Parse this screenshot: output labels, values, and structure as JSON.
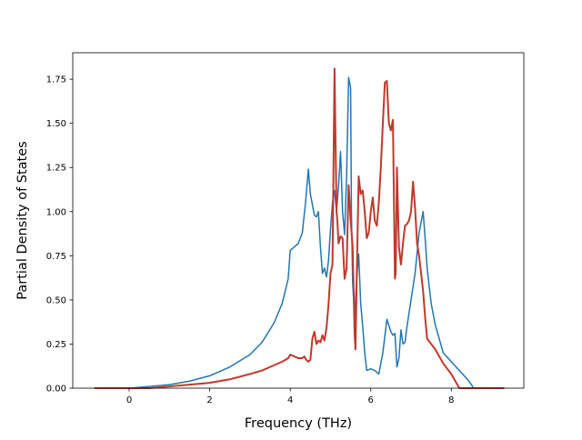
{
  "chart_data": {
    "type": "line",
    "xlabel": "Frequency (THz)",
    "ylabel": "Partial Density of States",
    "xlim": [
      -1.4,
      9.8
    ],
    "ylim": [
      0.0,
      1.9
    ],
    "xticks": [
      0,
      2,
      4,
      6,
      8
    ],
    "xtick_labels": [
      "0",
      "2",
      "4",
      "6",
      "8"
    ],
    "yticks": [
      0.0,
      0.25,
      0.5,
      0.75,
      1.0,
      1.25,
      1.5,
      1.75
    ],
    "ytick_labels": [
      "0.00",
      "0.25",
      "0.50",
      "0.75",
      "1.00",
      "1.25",
      "1.50",
      "1.75"
    ],
    "grid": false,
    "legend": "none",
    "series": [
      {
        "color": "#1f77b4",
        "x": [
          -0.85,
          0.0,
          0.5,
          1.0,
          1.5,
          2.0,
          2.5,
          3.0,
          3.3,
          3.6,
          3.8,
          3.95,
          4.0,
          4.1,
          4.2,
          4.3,
          4.38,
          4.45,
          4.5,
          4.6,
          4.65,
          4.7,
          4.75,
          4.8,
          4.85,
          4.9,
          4.95,
          5.0,
          5.05,
          5.1,
          5.15,
          5.2,
          5.25,
          5.3,
          5.35,
          5.4,
          5.45,
          5.5,
          5.52,
          5.55,
          5.6,
          5.65,
          5.7,
          5.75,
          5.8,
          5.85,
          5.9,
          6.0,
          6.1,
          6.2,
          6.3,
          6.4,
          6.5,
          6.55,
          6.6,
          6.65,
          6.7,
          6.75,
          6.8,
          6.85,
          6.9,
          7.0,
          7.1,
          7.2,
          7.3,
          7.35,
          7.4,
          7.5,
          7.6,
          7.7,
          7.8,
          8.0,
          8.2,
          8.4,
          8.5,
          8.55,
          9.3
        ],
        "y": [
          0.0,
          0.0,
          0.01,
          0.02,
          0.04,
          0.07,
          0.12,
          0.19,
          0.26,
          0.37,
          0.48,
          0.62,
          0.78,
          0.8,
          0.82,
          0.88,
          1.05,
          1.24,
          1.1,
          0.98,
          0.97,
          1.0,
          0.8,
          0.65,
          0.68,
          0.63,
          0.72,
          0.9,
          1.05,
          1.12,
          1.0,
          1.15,
          1.34,
          1.0,
          0.87,
          1.2,
          1.76,
          1.7,
          1.0,
          0.6,
          0.4,
          0.62,
          0.76,
          0.48,
          0.35,
          0.2,
          0.1,
          0.11,
          0.1,
          0.08,
          0.2,
          0.39,
          0.32,
          0.3,
          0.31,
          0.12,
          0.17,
          0.33,
          0.25,
          0.26,
          0.35,
          0.5,
          0.65,
          0.88,
          1.0,
          0.85,
          0.68,
          0.48,
          0.36,
          0.28,
          0.2,
          0.15,
          0.1,
          0.05,
          0.02,
          0.0,
          0.0
        ]
      },
      {
        "color": "#c0392b",
        "x": [
          -0.85,
          0.0,
          0.5,
          1.0,
          1.5,
          2.0,
          2.5,
          3.0,
          3.3,
          3.6,
          3.8,
          3.95,
          4.0,
          4.1,
          4.2,
          4.3,
          4.35,
          4.4,
          4.45,
          4.5,
          4.55,
          4.6,
          4.65,
          4.7,
          4.75,
          4.8,
          4.85,
          4.9,
          4.95,
          5.0,
          5.05,
          5.1,
          5.15,
          5.17,
          5.2,
          5.25,
          5.3,
          5.35,
          5.4,
          5.45,
          5.5,
          5.55,
          5.6,
          5.62,
          5.65,
          5.7,
          5.75,
          5.8,
          5.85,
          5.9,
          5.95,
          6.0,
          6.05,
          6.1,
          6.15,
          6.2,
          6.25,
          6.3,
          6.35,
          6.4,
          6.45,
          6.5,
          6.55,
          6.6,
          6.62,
          6.65,
          6.7,
          6.75,
          6.8,
          6.85,
          6.9,
          6.95,
          7.0,
          7.05,
          7.1,
          7.15,
          7.2,
          7.25,
          7.3,
          7.35,
          7.4,
          7.5,
          7.6,
          7.7,
          7.8,
          8.0,
          8.2,
          8.4,
          8.5,
          8.55,
          9.3
        ],
        "y": [
          0.0,
          0.0,
          0.0,
          0.01,
          0.02,
          0.03,
          0.05,
          0.08,
          0.1,
          0.13,
          0.15,
          0.17,
          0.19,
          0.18,
          0.17,
          0.17,
          0.18,
          0.16,
          0.15,
          0.16,
          0.28,
          0.32,
          0.25,
          0.27,
          0.26,
          0.3,
          0.27,
          0.34,
          0.47,
          0.65,
          0.7,
          1.81,
          1.0,
          0.95,
          0.82,
          0.86,
          0.85,
          0.62,
          0.68,
          1.15,
          0.95,
          0.8,
          0.3,
          0.22,
          0.6,
          1.2,
          1.1,
          1.12,
          1.0,
          0.85,
          0.88,
          1.0,
          1.08,
          0.95,
          0.92,
          1.05,
          1.25,
          1.5,
          1.73,
          1.74,
          1.5,
          1.46,
          1.52,
          0.62,
          0.65,
          1.25,
          0.8,
          0.7,
          0.82,
          0.92,
          0.93,
          0.95,
          1.0,
          1.17,
          1.02,
          0.82,
          0.75,
          0.65,
          0.55,
          0.4,
          0.28,
          0.25,
          0.22,
          0.18,
          0.14,
          0.08,
          0.0,
          0.0,
          0.0,
          0.0,
          0.0
        ]
      }
    ]
  }
}
